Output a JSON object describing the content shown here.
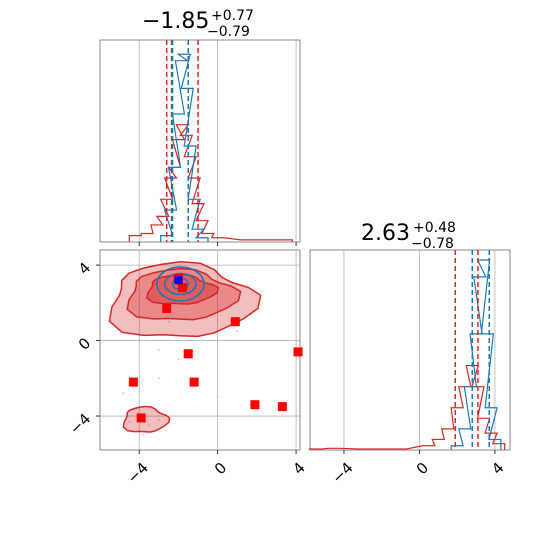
{
  "chart_data": {
    "type": "corner",
    "colors": {
      "red": "#d62728",
      "blue": "#1f77b4",
      "marker_red": "#ff0000",
      "marker_blue": "#0000ff",
      "grid": "#b0b0b0"
    },
    "titles": [
      {
        "param": "x",
        "median": "−1.85",
        "plus": "+0.77",
        "minus": "−0.79"
      },
      {
        "param": "y",
        "median": "2.63",
        "plus": "+0.48",
        "minus": "−0.78"
      }
    ],
    "axes": {
      "x": {
        "lim": [
          -6,
          4.2
        ],
        "ticks": [
          -4,
          0,
          4
        ],
        "tick_labels": [
          "−4",
          "0",
          "4"
        ]
      },
      "y": {
        "lim": [
          -5.8,
          4.8
        ],
        "ticks": [
          -4,
          0,
          4
        ],
        "tick_labels": [
          "−4",
          "0",
          "4"
        ]
      }
    },
    "grid": true,
    "hist_x": {
      "red_quantiles": [
        -2.6,
        -2.35,
        -1.0
      ],
      "blue_quantiles": [
        -2.3,
        -1.5
      ],
      "red": [
        [
          -4.2,
          0.03
        ],
        [
          -3.6,
          0.04
        ],
        [
          -3.1,
          0.08
        ],
        [
          -2.8,
          0.12
        ],
        [
          -2.6,
          0.2
        ],
        [
          -2.4,
          0.3
        ],
        [
          -2.2,
          0.35
        ],
        [
          -2.0,
          0.48
        ],
        [
          -1.8,
          0.55
        ],
        [
          -1.6,
          0.5
        ],
        [
          -1.4,
          0.4
        ],
        [
          -1.2,
          0.3
        ],
        [
          -1.0,
          0.18
        ],
        [
          -0.8,
          0.1
        ],
        [
          -0.5,
          0.04
        ],
        [
          0,
          0.02
        ],
        [
          1.5,
          0.01
        ],
        [
          2.5,
          0.01
        ],
        [
          3.5,
          0.01
        ]
      ],
      "blue": [
        [
          -2.6,
          0.03
        ],
        [
          -2.4,
          0.15
        ],
        [
          -2.2,
          0.35
        ],
        [
          -2.0,
          0.6
        ],
        [
          -1.85,
          0.85
        ],
        [
          -1.7,
          0.88
        ],
        [
          -1.55,
          0.72
        ],
        [
          -1.4,
          0.45
        ],
        [
          -1.2,
          0.2
        ],
        [
          -1.0,
          0.06
        ],
        [
          -0.8,
          0.02
        ]
      ]
    },
    "hist_y": {
      "red_quantiles": [
        1.9,
        3.1
      ],
      "blue_quantiles": [
        2.8,
        3.7
      ],
      "red": [
        [
          -5.5,
          0.005
        ],
        [
          -4.5,
          0.008
        ],
        [
          -3.0,
          0.005
        ],
        [
          -1.0,
          0.005
        ],
        [
          0.5,
          0.02
        ],
        [
          1.0,
          0.05
        ],
        [
          1.5,
          0.1
        ],
        [
          2.0,
          0.2
        ],
        [
          2.4,
          0.3
        ],
        [
          2.8,
          0.4
        ],
        [
          3.1,
          0.3
        ],
        [
          3.4,
          0.15
        ],
        [
          3.8,
          0.08
        ],
        [
          4.2,
          0.03
        ]
      ],
      "blue": [
        [
          2.0,
          0.02
        ],
        [
          2.4,
          0.1
        ],
        [
          2.7,
          0.3
        ],
        [
          3.0,
          0.55
        ],
        [
          3.2,
          0.82
        ],
        [
          3.4,
          0.9
        ],
        [
          3.6,
          0.55
        ],
        [
          3.8,
          0.2
        ],
        [
          4.0,
          0.05
        ]
      ]
    },
    "scatter_red": [
      [
        -2.0,
        3.3
      ],
      [
        -1.8,
        2.8
      ],
      [
        -2.6,
        1.7
      ],
      [
        0.9,
        1.0
      ],
      [
        -1.5,
        -0.7
      ],
      [
        -1.2,
        -2.2
      ],
      [
        4.1,
        -0.6
      ],
      [
        -4.3,
        -2.2
      ],
      [
        -3.9,
        -4.1
      ],
      [
        1.9,
        -3.4
      ],
      [
        3.3,
        -3.5
      ]
    ],
    "scatter_blue": [
      [
        -2.0,
        3.2
      ]
    ]
  }
}
